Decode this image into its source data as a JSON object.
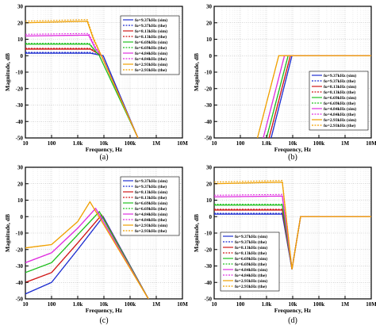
{
  "figure": {
    "panels": [
      "(a)",
      "(b)",
      "(c)",
      "(d)"
    ]
  },
  "legend_labels": [
    "fo=9.37kHz (sim)",
    "fo=9.37kHz (the)",
    "fo=8.13kHz (sim)",
    "fo=8.13kHz (the)",
    "fo=6.69kHz (sim)",
    "fo=6.69kHz (the)",
    "fo=4.84kHz (sim)",
    "fo=4.84kHz (the)",
    "fo=2.93kHz (sim)",
    "fo=2.93kHz (the)"
  ],
  "series_colors": [
    "#1f2fd0",
    "#1f2fd0",
    "#d01818",
    "#d01818",
    "#20c020",
    "#20c020",
    "#e030e0",
    "#e030e0",
    "#f0a000",
    "#f0a000"
  ],
  "chart_data": [
    {
      "panel": "(a)",
      "type": "line",
      "xlabel": "Frequency, Hz",
      "ylabel": "Magnitude, dB",
      "xscale": "log",
      "xlim": [
        10,
        10000000
      ],
      "ylim": [
        -50,
        30
      ],
      "xticks": [
        "10",
        "100",
        "1.0k",
        "10k",
        "100k",
        "1M",
        "10M"
      ],
      "yticks": [
        "-50",
        "-40",
        "-30",
        "-20",
        "-10",
        "0",
        "10",
        "20",
        "30"
      ],
      "grid": true,
      "legend_position": "top-right",
      "series": [
        {
          "name": "fo=9.37kHz (sim)",
          "points": [
            [
              10,
              1.5
            ],
            [
              3000,
              1.5
            ],
            [
              9370,
              0
            ],
            [
              200000,
              -50
            ]
          ]
        },
        {
          "name": "fo=9.37kHz (the)",
          "points": [
            [
              10,
              2
            ],
            [
              3000,
              2
            ],
            [
              9370,
              0
            ],
            [
              200000,
              -50
            ]
          ]
        },
        {
          "name": "fo=8.13kHz (sim)",
          "points": [
            [
              10,
              4
            ],
            [
              3000,
              4
            ],
            [
              8130,
              0
            ],
            [
              200000,
              -50
            ]
          ]
        },
        {
          "name": "fo=8.13kHz (the)",
          "points": [
            [
              10,
              4.5
            ],
            [
              3000,
              4.5
            ],
            [
              8130,
              0
            ],
            [
              200000,
              -50
            ]
          ]
        },
        {
          "name": "fo=6.69kHz (sim)",
          "points": [
            [
              10,
              7
            ],
            [
              2800,
              7
            ],
            [
              6690,
              0
            ],
            [
              200000,
              -50
            ]
          ]
        },
        {
          "name": "fo=6.69kHz (the)",
          "points": [
            [
              10,
              7.5
            ],
            [
              2800,
              7.5
            ],
            [
              6690,
              0
            ],
            [
              200000,
              -50
            ]
          ]
        },
        {
          "name": "fo=4.84kHz (sim)",
          "points": [
            [
              10,
              12
            ],
            [
              2600,
              12.5
            ],
            [
              4840,
              4
            ],
            [
              8000,
              0
            ],
            [
              200000,
              -50
            ]
          ]
        },
        {
          "name": "fo=4.84kHz (the)",
          "points": [
            [
              10,
              13
            ],
            [
              2600,
              13.5
            ],
            [
              4840,
              5
            ],
            [
              8000,
              0
            ],
            [
              200000,
              -50
            ]
          ]
        },
        {
          "name": "fo=2.93kHz (sim)",
          "points": [
            [
              10,
              20
            ],
            [
              2300,
              21
            ],
            [
              4000,
              10
            ],
            [
              8000,
              0
            ],
            [
              200000,
              -50
            ]
          ]
        },
        {
          "name": "fo=2.93kHz (the)",
          "points": [
            [
              10,
              21
            ],
            [
              2300,
              22
            ],
            [
              4000,
              11
            ],
            [
              8000,
              0
            ],
            [
              200000,
              -50
            ]
          ]
        }
      ]
    },
    {
      "panel": "(b)",
      "type": "line",
      "xlabel": "Frequency, Hz",
      "ylabel": "Magnitude, dB",
      "xscale": "log",
      "xlim": [
        10,
        10000000
      ],
      "ylim": [
        -50,
        30
      ],
      "xticks": [
        "10",
        "100",
        "1.0k",
        "10k",
        "100k",
        "1M",
        "10M"
      ],
      "yticks": [
        "-50",
        "-40",
        "-30",
        "-20",
        "-10",
        "0",
        "10",
        "20",
        "30"
      ],
      "grid": true,
      "legend_position": "bottom-right",
      "series": [
        {
          "name": "fo=9.37kHz (sim)",
          "points": [
            [
              1500,
              -50
            ],
            [
              9370,
              0
            ],
            [
              10000000,
              0
            ]
          ]
        },
        {
          "name": "fo=9.37kHz (the)",
          "points": [
            [
              1500,
              -50
            ],
            [
              9370,
              0
            ],
            [
              10000000,
              0
            ]
          ]
        },
        {
          "name": "fo=8.13kHz (sim)",
          "points": [
            [
              1250,
              -50
            ],
            [
              8130,
              0
            ],
            [
              10000000,
              0
            ]
          ]
        },
        {
          "name": "fo=8.13kHz (the)",
          "points": [
            [
              1250,
              -50
            ],
            [
              8130,
              0
            ],
            [
              10000000,
              0
            ]
          ]
        },
        {
          "name": "fo=6.69kHz (sim)",
          "points": [
            [
              1000,
              -50
            ],
            [
              6690,
              0
            ],
            [
              10000000,
              0
            ]
          ]
        },
        {
          "name": "fo=6.69kHz (the)",
          "points": [
            [
              1000,
              -50
            ],
            [
              6690,
              0
            ],
            [
              10000000,
              0
            ]
          ]
        },
        {
          "name": "fo=4.84kHz (sim)",
          "points": [
            [
              750,
              -50
            ],
            [
              4840,
              0
            ],
            [
              10000000,
              0
            ]
          ]
        },
        {
          "name": "fo=4.84kHz (the)",
          "points": [
            [
              750,
              -50
            ],
            [
              4840,
              0
            ],
            [
              10000000,
              0
            ]
          ]
        },
        {
          "name": "fo=2.93kHz (sim)",
          "points": [
            [
              450,
              -50
            ],
            [
              2930,
              0
            ],
            [
              10000000,
              0
            ]
          ]
        },
        {
          "name": "fo=2.93kHz (the)",
          "points": [
            [
              450,
              -50
            ],
            [
              2930,
              0
            ],
            [
              10000000,
              0
            ]
          ]
        }
      ]
    },
    {
      "panel": "(c)",
      "type": "line",
      "xlabel": "Frequency, Hz",
      "ylabel": "Magnitude, dB",
      "xscale": "log",
      "xlim": [
        10,
        10000000
      ],
      "ylim": [
        -50,
        30
      ],
      "xticks": [
        "10",
        "100",
        "1.0k",
        "10k",
        "100k",
        "1M",
        "10M"
      ],
      "yticks": [
        "-50",
        "-40",
        "-30",
        "-20",
        "-10",
        "0",
        "10",
        "20",
        "30"
      ],
      "grid": true,
      "legend_position": "top-right",
      "series": [
        {
          "name": "fo=9.37kHz (sim)",
          "points": [
            [
              10,
              -47
            ],
            [
              100,
              -40
            ],
            [
              1000,
              -20
            ],
            [
              9370,
              0
            ],
            [
              500000,
              -50
            ]
          ]
        },
        {
          "name": "fo=9.37kHz (the)",
          "points": [
            [
              10,
              -47
            ],
            [
              100,
              -40
            ],
            [
              1000,
              -20
            ],
            [
              9370,
              0
            ],
            [
              500000,
              -50
            ]
          ]
        },
        {
          "name": "fo=8.13kHz (sim)",
          "points": [
            [
              10,
              -40
            ],
            [
              100,
              -34
            ],
            [
              1000,
              -16
            ],
            [
              8130,
              1
            ],
            [
              500000,
              -50
            ]
          ]
        },
        {
          "name": "fo=8.13kHz (the)",
          "points": [
            [
              10,
              -40
            ],
            [
              100,
              -34
            ],
            [
              1000,
              -16
            ],
            [
              8130,
              1
            ],
            [
              500000,
              -50
            ]
          ]
        },
        {
          "name": "fo=6.69kHz (sim)",
          "points": [
            [
              10,
              -34
            ],
            [
              100,
              -28
            ],
            [
              1000,
              -11
            ],
            [
              6690,
              3
            ],
            [
              500000,
              -50
            ]
          ]
        },
        {
          "name": "fo=6.69kHz (the)",
          "points": [
            [
              10,
              -34
            ],
            [
              100,
              -28
            ],
            [
              1000,
              -11
            ],
            [
              6690,
              3
            ],
            [
              500000,
              -50
            ]
          ]
        },
        {
          "name": "fo=4.84kHz (sim)",
          "points": [
            [
              10,
              -28
            ],
            [
              100,
              -22
            ],
            [
              1000,
              -7
            ],
            [
              4840,
              5
            ],
            [
              500000,
              -50
            ]
          ]
        },
        {
          "name": "fo=4.84kHz (the)",
          "points": [
            [
              10,
              -28
            ],
            [
              100,
              -22
            ],
            [
              1000,
              -7
            ],
            [
              4840,
              5
            ],
            [
              500000,
              -50
            ]
          ]
        },
        {
          "name": "fo=2.93kHz (sim)",
          "points": [
            [
              10,
              -19
            ],
            [
              100,
              -17
            ],
            [
              1000,
              -3
            ],
            [
              2930,
              9
            ],
            [
              500000,
              -50
            ]
          ]
        },
        {
          "name": "fo=2.93kHz (the)",
          "points": [
            [
              10,
              -19
            ],
            [
              100,
              -17
            ],
            [
              1000,
              -3
            ],
            [
              2930,
              9
            ],
            [
              500000,
              -50
            ]
          ]
        }
      ]
    },
    {
      "panel": "(d)",
      "type": "line",
      "xlabel": "Frequency, Hz",
      "ylabel": "Magnitude, dB",
      "xscale": "log",
      "xlim": [
        10,
        10000000
      ],
      "ylim": [
        -50,
        30
      ],
      "xticks": [
        "10",
        "100",
        "1.0k",
        "10k",
        "100k",
        "1M",
        "10M"
      ],
      "yticks": [
        "-50",
        "-40",
        "-30",
        "-20",
        "-10",
        "0",
        "10",
        "20",
        "30"
      ],
      "grid": true,
      "legend_position": "bottom-left",
      "series": [
        {
          "name": "fo=9.37kHz (sim)",
          "points": [
            [
              10,
              1.5
            ],
            [
              4000,
              1.5
            ],
            [
              9370,
              -32
            ],
            [
              20000,
              0
            ],
            [
              10000000,
              0
            ]
          ]
        },
        {
          "name": "fo=9.37kHz (the)",
          "points": [
            [
              10,
              2
            ],
            [
              4000,
              2
            ],
            [
              9370,
              -32
            ],
            [
              20000,
              0
            ],
            [
              10000000,
              0
            ]
          ]
        },
        {
          "name": "fo=8.13kHz (sim)",
          "points": [
            [
              10,
              4
            ],
            [
              4000,
              4
            ],
            [
              9370,
              -32
            ],
            [
              20000,
              0
            ],
            [
              10000000,
              0
            ]
          ]
        },
        {
          "name": "fo=8.13kHz (the)",
          "points": [
            [
              10,
              4.5
            ],
            [
              4000,
              4.5
            ],
            [
              9370,
              -32
            ],
            [
              20000,
              0
            ],
            [
              10000000,
              0
            ]
          ]
        },
        {
          "name": "fo=6.69kHz (sim)",
          "points": [
            [
              10,
              7
            ],
            [
              4000,
              7
            ],
            [
              9370,
              -32
            ],
            [
              20000,
              0
            ],
            [
              10000000,
              0
            ]
          ]
        },
        {
          "name": "fo=6.69kHz (the)",
          "points": [
            [
              10,
              7.5
            ],
            [
              4000,
              7.5
            ],
            [
              9370,
              -32
            ],
            [
              20000,
              0
            ],
            [
              10000000,
              0
            ]
          ]
        },
        {
          "name": "fo=4.84kHz (sim)",
          "points": [
            [
              10,
              12
            ],
            [
              4000,
              12.5
            ],
            [
              9370,
              -32
            ],
            [
              20000,
              0
            ],
            [
              10000000,
              0
            ]
          ]
        },
        {
          "name": "fo=4.84kHz (the)",
          "points": [
            [
              10,
              13
            ],
            [
              4000,
              13.5
            ],
            [
              9370,
              -32
            ],
            [
              20000,
              0
            ],
            [
              10000000,
              0
            ]
          ]
        },
        {
          "name": "fo=2.93kHz (sim)",
          "points": [
            [
              10,
              20
            ],
            [
              4000,
              21
            ],
            [
              9370,
              -32
            ],
            [
              20000,
              0
            ],
            [
              10000000,
              0
            ]
          ]
        },
        {
          "name": "fo=2.93kHz (the)",
          "points": [
            [
              10,
              21
            ],
            [
              4000,
              22
            ],
            [
              9370,
              -32
            ],
            [
              20000,
              0
            ],
            [
              10000000,
              0
            ]
          ]
        }
      ]
    }
  ]
}
